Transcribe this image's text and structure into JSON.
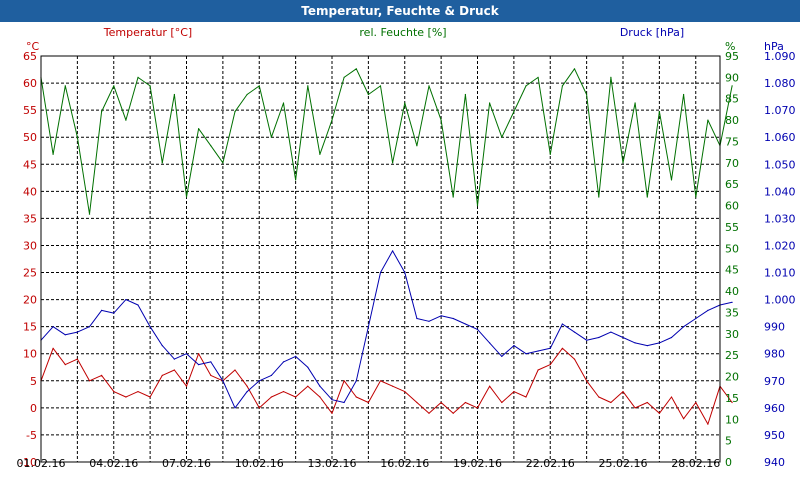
{
  "window": {
    "title": "Temperatur, Feuchte & Druck"
  },
  "colors": {
    "temperature": "#c00000",
    "humidity": "#007000",
    "pressure": "#0000b0",
    "title_bar": "#1f5f9f",
    "grid": "#000000"
  },
  "chart_data": {
    "type": "line",
    "title": "Temperatur, Feuchte & Druck",
    "grid": true,
    "x": {
      "range": [
        "01.02.16",
        "29.02.16"
      ],
      "tick_labels": [
        "01.02.16",
        "04.02.16",
        "07.02.16",
        "10.02.16",
        "13.02.16",
        "16.02.16",
        "19.02.16",
        "22.02.16",
        "25.02.16",
        "28.02.16"
      ],
      "minor_grid_every_days": 1.5
    },
    "axes": {
      "temperature": {
        "label": "Temperatur [°C]",
        "unit": "°C",
        "range": [
          -10,
          65
        ],
        "ticks": [
          -10,
          -5,
          0,
          5,
          10,
          15,
          20,
          25,
          30,
          35,
          40,
          45,
          50,
          55,
          60,
          65
        ],
        "side": "left"
      },
      "humidity": {
        "label": "rel. Feuchte [%]",
        "unit": "%",
        "range": [
          0,
          95
        ],
        "ticks": [
          0,
          5,
          10,
          15,
          20,
          25,
          30,
          35,
          40,
          45,
          50,
          55,
          60,
          65,
          70,
          75,
          80,
          85,
          90,
          95
        ],
        "side": "right"
      },
      "pressure": {
        "label": "Druck [hPa]",
        "unit": "hPa",
        "range": [
          940,
          1090
        ],
        "ticks": [
          "940",
          "950",
          "960",
          "970",
          "980",
          "990",
          "1.000",
          "1.010",
          "1.020",
          "1.030",
          "1.040",
          "1.050",
          "1.060",
          "1.070",
          "1.080",
          "1.090"
        ],
        "side": "right"
      }
    },
    "series": [
      {
        "name": "Temperatur [°C]",
        "axis": "temperature",
        "color": "#c00000",
        "x": [
          "01.02.16",
          "01.02.16 12:00",
          "02.02.16",
          "02.02.16 12:00",
          "03.02.16",
          "03.02.16 12:00",
          "04.02.16",
          "04.02.16 12:00",
          "05.02.16",
          "05.02.16 12:00",
          "06.02.16",
          "06.02.16 12:00",
          "07.02.16",
          "07.02.16 12:00",
          "08.02.16",
          "08.02.16 12:00",
          "09.02.16",
          "09.02.16 12:00",
          "10.02.16",
          "10.02.16 12:00",
          "11.02.16",
          "11.02.16 12:00",
          "12.02.16",
          "12.02.16 12:00",
          "13.02.16",
          "13.02.16 12:00",
          "14.02.16",
          "14.02.16 12:00",
          "15.02.16",
          "15.02.16 12:00",
          "16.02.16",
          "16.02.16 12:00",
          "17.02.16",
          "17.02.16 12:00",
          "18.02.16",
          "18.02.16 12:00",
          "19.02.16",
          "19.02.16 12:00",
          "20.02.16",
          "20.02.16 12:00",
          "21.02.16",
          "21.02.16 12:00",
          "22.02.16",
          "22.02.16 12:00",
          "23.02.16",
          "23.02.16 12:00",
          "24.02.16",
          "24.02.16 12:00",
          "25.02.16",
          "25.02.16 12:00",
          "26.02.16",
          "26.02.16 12:00",
          "27.02.16",
          "27.02.16 12:00",
          "28.02.16",
          "28.02.16 12:00",
          "29.02.16",
          "29.02.16 12:00"
        ],
        "values": [
          5,
          11,
          8,
          9,
          5,
          6,
          3,
          2,
          3,
          2,
          6,
          7,
          4,
          10,
          6,
          5,
          7,
          4,
          0,
          2,
          3,
          2,
          4,
          2,
          -1,
          5,
          2,
          1,
          5,
          4,
          3,
          1,
          -1,
          1,
          -1,
          1,
          0,
          4,
          1,
          3,
          2,
          7,
          8,
          11,
          9,
          5,
          2,
          1,
          3,
          0,
          1,
          -1,
          2,
          -2,
          1,
          -3,
          4,
          1
        ]
      },
      {
        "name": "rel. Feuchte [%]",
        "axis": "humidity",
        "color": "#007000",
        "x": [
          "01.02.16",
          "01.02.16 12:00",
          "02.02.16",
          "02.02.16 12:00",
          "03.02.16",
          "03.02.16 12:00",
          "04.02.16",
          "04.02.16 12:00",
          "05.02.16",
          "05.02.16 12:00",
          "06.02.16",
          "06.02.16 12:00",
          "07.02.16",
          "07.02.16 12:00",
          "08.02.16",
          "08.02.16 12:00",
          "09.02.16",
          "09.02.16 12:00",
          "10.02.16",
          "10.02.16 12:00",
          "11.02.16",
          "11.02.16 12:00",
          "12.02.16",
          "12.02.16 12:00",
          "13.02.16",
          "13.02.16 12:00",
          "14.02.16",
          "14.02.16 12:00",
          "15.02.16",
          "15.02.16 12:00",
          "16.02.16",
          "16.02.16 12:00",
          "17.02.16",
          "17.02.16 12:00",
          "18.02.16",
          "18.02.16 12:00",
          "19.02.16",
          "19.02.16 12:00",
          "20.02.16",
          "20.02.16 12:00",
          "21.02.16",
          "21.02.16 12:00",
          "22.02.16",
          "22.02.16 12:00",
          "23.02.16",
          "23.02.16 12:00",
          "24.02.16",
          "24.02.16 12:00",
          "25.02.16",
          "25.02.16 12:00",
          "26.02.16",
          "26.02.16 12:00",
          "27.02.16",
          "27.02.16 12:00",
          "28.02.16",
          "28.02.16 12:00",
          "29.02.16",
          "29.02.16 12:00"
        ],
        "values": [
          90,
          72,
          88,
          76,
          58,
          82,
          88,
          80,
          90,
          88,
          70,
          86,
          62,
          78,
          74,
          70,
          82,
          86,
          88,
          76,
          84,
          66,
          88,
          72,
          80,
          90,
          92,
          86,
          88,
          70,
          84,
          74,
          88,
          80,
          62,
          86,
          60,
          84,
          76,
          82,
          88,
          90,
          72,
          88,
          92,
          86,
          62,
          90,
          70,
          84,
          62,
          82,
          66,
          86,
          62,
          80,
          74,
          88
        ]
      },
      {
        "name": "Druck [hPa]",
        "axis": "pressure",
        "color": "#0000b0",
        "x": [
          "01.02.16",
          "01.02.16 12:00",
          "02.02.16",
          "02.02.16 12:00",
          "03.02.16",
          "03.02.16 12:00",
          "04.02.16",
          "04.02.16 12:00",
          "05.02.16",
          "05.02.16 12:00",
          "06.02.16",
          "06.02.16 12:00",
          "07.02.16",
          "07.02.16 12:00",
          "08.02.16",
          "08.02.16 12:00",
          "09.02.16",
          "09.02.16 12:00",
          "10.02.16",
          "10.02.16 12:00",
          "11.02.16",
          "11.02.16 12:00",
          "12.02.16",
          "12.02.16 12:00",
          "13.02.16",
          "13.02.16 12:00",
          "14.02.16",
          "14.02.16 12:00",
          "15.02.16",
          "15.02.16 12:00",
          "16.02.16",
          "16.02.16 12:00",
          "17.02.16",
          "17.02.16 12:00",
          "18.02.16",
          "18.02.16 12:00",
          "19.02.16",
          "19.02.16 12:00",
          "20.02.16",
          "20.02.16 12:00",
          "21.02.16",
          "21.02.16 12:00",
          "22.02.16",
          "22.02.16 12:00",
          "23.02.16",
          "23.02.16 12:00",
          "24.02.16",
          "24.02.16 12:00",
          "25.02.16",
          "25.02.16 12:00",
          "26.02.16",
          "26.02.16 12:00",
          "27.02.16",
          "27.02.16 12:00",
          "28.02.16",
          "28.02.16 12:00",
          "29.02.16",
          "29.02.16 12:00"
        ],
        "values": [
          985,
          990,
          987,
          988,
          990,
          996,
          995,
          1000,
          998,
          990,
          983,
          978,
          980,
          976,
          977,
          970,
          960,
          966,
          970,
          972,
          977,
          979,
          975,
          968,
          963,
          962,
          970,
          990,
          1010,
          1018,
          1010,
          993,
          992,
          994,
          993,
          991,
          989,
          984,
          979,
          983,
          980,
          981,
          982,
          991,
          988,
          985,
          986,
          988,
          986,
          984,
          983,
          984,
          986,
          990,
          993,
          996,
          998,
          999
        ]
      }
    ]
  }
}
